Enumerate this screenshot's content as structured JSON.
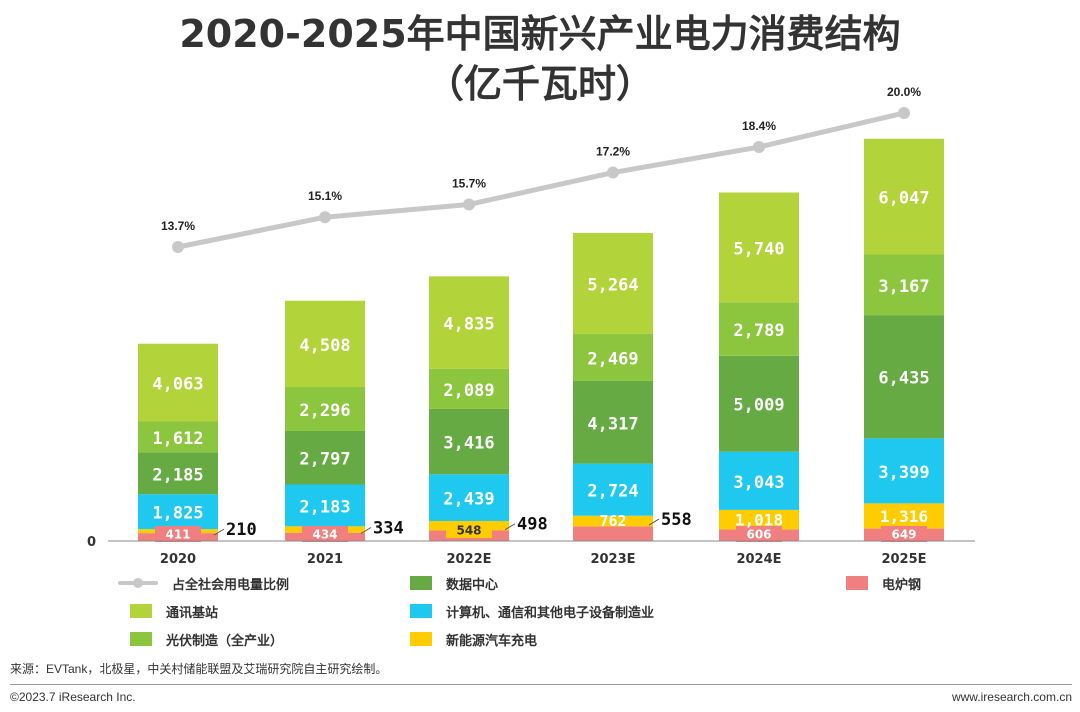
{
  "title_line1": "2020-2025年中国新兴产业电力消费结构",
  "title_line2": "（亿千瓦时）",
  "source": "来源：EVTank，北极星，中关村储能联盟及艾瑞研究院自主研究绘制。",
  "copyright": "©2023.7 iResearch Inc.",
  "website": "www.iresearch.com.cn",
  "chart_data": {
    "type": "bar",
    "stacked": true,
    "categories": [
      "2020",
      "2021",
      "2022E",
      "2023E",
      "2024E",
      "2025E"
    ],
    "y_axis_zero_label": "0",
    "series": [
      {
        "name": "电炉钢",
        "color": "#f08080",
        "values": [
          411,
          434,
          548,
          762,
          606,
          649
        ]
      },
      {
        "name": "新能源汽车充电",
        "color": "#ffcc00",
        "values": [
          210,
          334,
          498,
          558,
          1018,
          1316
        ]
      },
      {
        "name": "计算机、通信和其他电子设备制造业",
        "color": "#1ec8ee",
        "values": [
          1825,
          2183,
          2439,
          2724,
          3043,
          3399
        ]
      },
      {
        "name": "数据中心",
        "color": "#66aa44",
        "values": [
          2185,
          2797,
          3416,
          4317,
          5009,
          6435
        ]
      },
      {
        "name": "光伏制造（全产业）",
        "color": "#8cc63f",
        "values": [
          1612,
          2296,
          2089,
          2469,
          2789,
          3167
        ]
      },
      {
        "name": "通讯基站",
        "color": "#b3d33b",
        "values": [
          4063,
          4508,
          4835,
          5264,
          5740,
          6047
        ]
      }
    ],
    "line_series": {
      "name": "占全社会用电量比例",
      "color": "#c8c8c8",
      "values": [
        13.7,
        15.1,
        15.7,
        17.2,
        18.4,
        20.0
      ],
      "labels": [
        "13.7%",
        "15.1%",
        "15.7%",
        "17.2%",
        "18.4%",
        "20.0%"
      ]
    },
    "value_labels": [
      [
        "411",
        "210",
        "1,825",
        "2,185",
        "1,612",
        "4,063"
      ],
      [
        "434",
        "334",
        "2,183",
        "2,797",
        "2,296",
        "4,508"
      ],
      [
        "548",
        "498",
        "2,439",
        "3,416",
        "2,089",
        "4,835"
      ],
      [
        "762",
        "558",
        "2,724",
        "4,317",
        "2,469",
        "5,264"
      ],
      [
        "606",
        "1,018",
        "3,043",
        "5,009",
        "2,789",
        "5,740"
      ],
      [
        "649",
        "1,316",
        "3,399",
        "6,435",
        "3,167",
        "6,047"
      ]
    ],
    "legend_position": "bottom"
  }
}
